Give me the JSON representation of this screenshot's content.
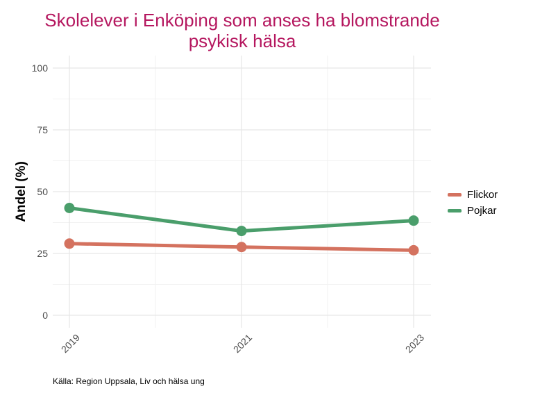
{
  "chart_data": {
    "type": "line",
    "title_line1": "Skolelever i Enköping som anses ha blomstrande",
    "title_line2": "psykisk hälsa",
    "xlabel": "",
    "ylabel": "Andel (%)",
    "x": [
      "2019",
      "2021",
      "2023"
    ],
    "ylim": [
      0,
      100
    ],
    "yticks": [
      "0",
      "25",
      "50",
      "75",
      "100"
    ],
    "grid": true,
    "legend_position": "right",
    "series": [
      {
        "name": "Flickor",
        "color": "#d4725f",
        "values": [
          29.0,
          27.6,
          26.3
        ]
      },
      {
        "name": "Pojkar",
        "color": "#4a9e6b",
        "values": [
          43.4,
          34.1,
          38.3
        ]
      }
    ],
    "caption": "Källa: Region Uppsala, Liv och hälsa ung"
  }
}
